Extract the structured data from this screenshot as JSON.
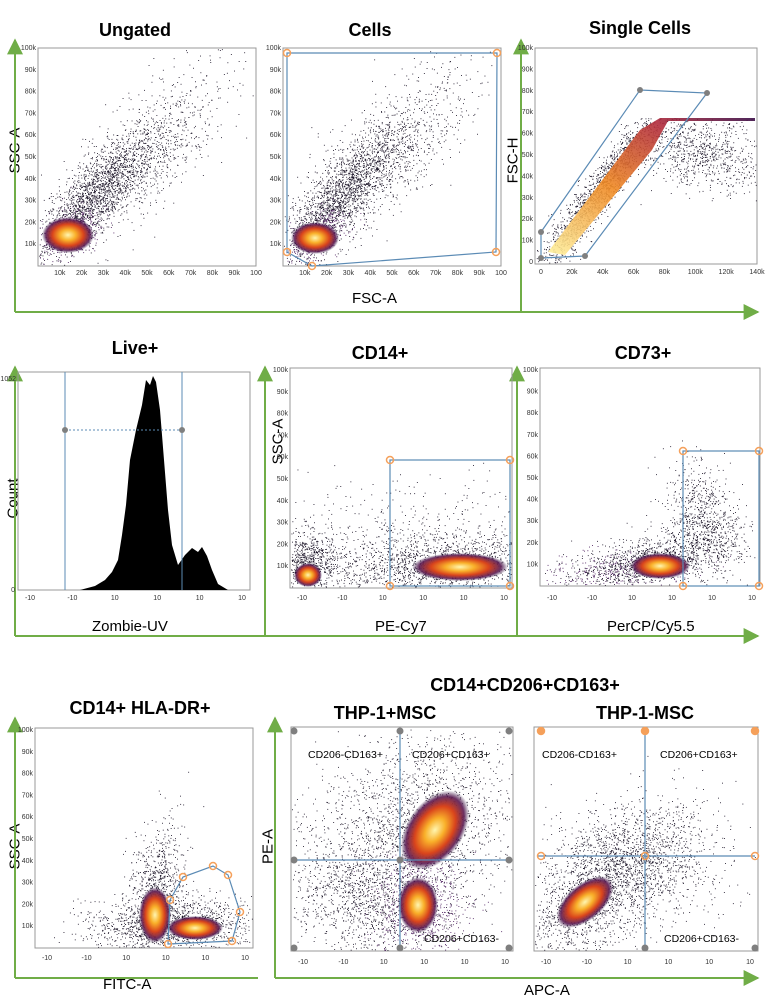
{
  "chart_data": [
    {
      "id": "ungated",
      "type": "scatter",
      "title": "Ungated",
      "xlabel": "",
      "ylabel": "SSC-A",
      "xlim": [
        0,
        100000
      ],
      "ylim": [
        0,
        100000
      ],
      "x_ticks": [
        "10k",
        "20k",
        "30k",
        "40k",
        "50k",
        "60k",
        "70k",
        "80k",
        "90k",
        "100"
      ],
      "y_ticks": [
        "10k",
        "20k",
        "30k",
        "40k",
        "50k",
        "60k",
        "70k",
        "80k",
        "90k",
        "100k"
      ],
      "points": [
        [
          12000,
          15000
        ],
        [
          15000,
          18000
        ],
        [
          20000,
          22000
        ],
        [
          30000,
          30000
        ],
        [
          40000,
          38000
        ],
        [
          60000,
          55000
        ],
        [
          80000,
          70000
        ]
      ]
    },
    {
      "id": "cells",
      "type": "scatter",
      "title": "Cells",
      "xlabel": "FSC-A",
      "ylabel": "",
      "xlim": [
        0,
        100000
      ],
      "ylim": [
        0,
        100000
      ],
      "x_ticks": [
        "10k",
        "20k",
        "30k",
        "40k",
        "50k",
        "60k",
        "70k",
        "80k",
        "90k",
        "100"
      ],
      "y_ticks": [
        "10k",
        "20k",
        "30k",
        "40k",
        "50k",
        "60k",
        "70k",
        "80k",
        "90k",
        "100k"
      ],
      "gate": [
        [
          1000,
          6000
        ],
        [
          13000,
          1000
        ],
        [
          97000,
          6000
        ],
        [
          98000,
          98000
        ],
        [
          1000,
          98000
        ]
      ]
    },
    {
      "id": "single_cells",
      "type": "scatter",
      "title": "Single Cells",
      "xlabel": "",
      "ylabel": "FSC-H",
      "xlim": [
        0,
        140000
      ],
      "ylim": [
        0,
        100000
      ],
      "x_ticks": [
        "0",
        "20k",
        "40k",
        "60k",
        "80k",
        "100k",
        "120k",
        "140k"
      ],
      "y_ticks": [
        "0",
        "10k",
        "20k",
        "30k",
        "40k",
        "50k",
        "60k",
        "70k",
        "80k",
        "90k",
        "100k"
      ],
      "gate": [
        [
          1000,
          3000
        ],
        [
          28000,
          4000
        ],
        [
          108000,
          80000
        ],
        [
          65000,
          82000
        ],
        [
          1000,
          14000
        ]
      ]
    },
    {
      "id": "live",
      "type": "area",
      "title": "Live+",
      "xlabel": "Zombie-UV",
      "ylabel": "Count",
      "xlim": [
        -10,
        10
      ],
      "ylim": [
        0,
        1052
      ],
      "y_ticks": [
        "0",
        "1052"
      ],
      "x_ticks": [
        "-10",
        "-10",
        "10",
        "10"
      ],
      "gate": [
        -7.2,
        4.6
      ],
      "histogram": [
        [
          -4,
          5
        ],
        [
          -3,
          40
        ],
        [
          -2,
          150
        ],
        [
          -1,
          400
        ],
        [
          0,
          700
        ],
        [
          0.5,
          900
        ],
        [
          1,
          1052
        ],
        [
          1.5,
          800
        ],
        [
          2,
          300
        ],
        [
          3,
          120
        ],
        [
          4,
          80
        ],
        [
          5,
          220
        ],
        [
          6,
          190
        ],
        [
          7,
          80
        ],
        [
          8,
          10
        ]
      ]
    },
    {
      "id": "cd14",
      "type": "scatter",
      "title": "CD14+",
      "xlabel": "PE-Cy7",
      "ylabel": "SSC-A",
      "xlim": [
        -100,
        100000
      ],
      "ylim": [
        0,
        100000
      ],
      "y_ticks": [
        "10k",
        "20k",
        "30k",
        "40k",
        "50k",
        "60k",
        "70k",
        "80k",
        "90k",
        "100k"
      ],
      "x_ticks": [
        "-10",
        "-10",
        "10",
        "10",
        "10",
        "10"
      ],
      "gate": [
        [
          1000,
          0
        ],
        [
          100000,
          0
        ],
        [
          100000,
          58000
        ],
        [
          1000,
          58000
        ]
      ]
    },
    {
      "id": "cd73",
      "type": "scatter",
      "title": "CD73+",
      "xlabel": "PerCP/Cy5.5",
      "ylabel": "",
      "xlim": [
        -100,
        100000
      ],
      "ylim": [
        0,
        100000
      ],
      "y_ticks": [
        "10k",
        "20k",
        "30k",
        "40k",
        "50k",
        "60k",
        "70k",
        "80k",
        "90k",
        "100k"
      ],
      "x_ticks": [
        "-10",
        "-10",
        "10",
        "10",
        "10",
        "10"
      ],
      "gate": [
        [
          1000,
          0
        ],
        [
          100000,
          0
        ],
        [
          100000,
          62000
        ],
        [
          1000,
          62000
        ]
      ]
    },
    {
      "id": "cd14_hladr",
      "type": "scatter",
      "title": "CD14+ HLA-DR+",
      "xlabel": "FITC-A",
      "ylabel": "SSC-A",
      "xlim": [
        -100,
        100000
      ],
      "ylim": [
        0,
        100000
      ],
      "y_ticks": [
        "10k",
        "20k",
        "30k",
        "40k",
        "50k",
        "60k",
        "70k",
        "80k",
        "90k",
        "100k"
      ],
      "x_ticks": [
        "-10",
        "-10",
        "10",
        "10",
        "10",
        "10"
      ]
    },
    {
      "id": "thp1_msc_plus",
      "type": "scatter",
      "title": "THP-1+MSC",
      "xlabel": "",
      "ylabel": "PE-A",
      "quadrants": [
        "CD206-CD163+",
        "CD206+CD163+",
        "CD206+CD163-"
      ]
    },
    {
      "id": "thp1_msc_minus",
      "type": "scatter",
      "title": "THP-1-MSC",
      "xlabel": "",
      "ylabel": "",
      "quadrants": [
        "CD206-CD163+",
        "CD206+CD163+",
        "CD206+CD163-"
      ]
    }
  ],
  "group_title": "CD14+CD206+CD163+",
  "shared_xlabel": "APC-A",
  "colors": {
    "axis_arrow": "#70ad47",
    "gate": "#5b8bb5",
    "handle": "#f5a05a",
    "handle_gray": "#7f7f7f"
  }
}
